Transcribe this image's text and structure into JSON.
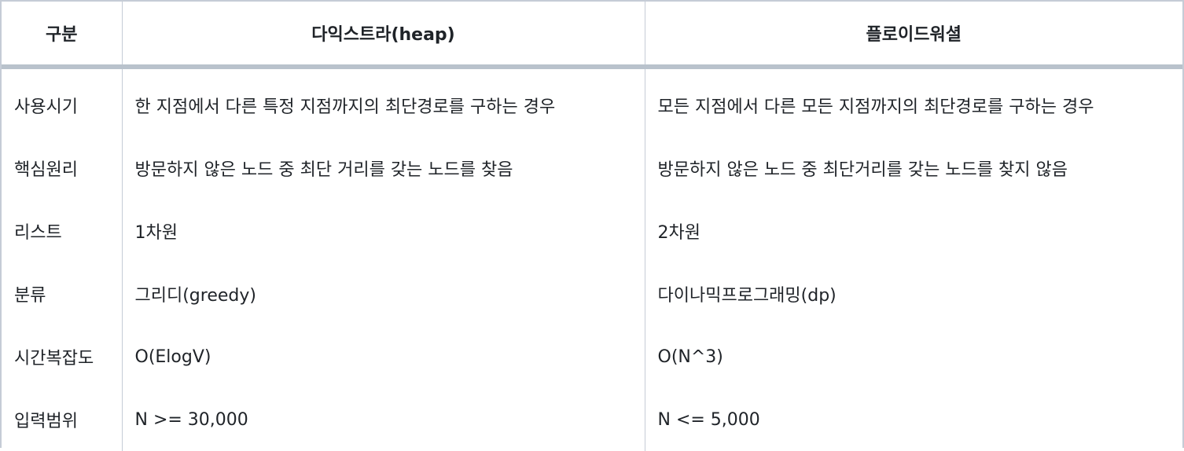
{
  "table": {
    "headers": [
      "구분",
      "다익스트라(heap)",
      "플로이드워셜"
    ],
    "rows": [
      [
        "사용시기",
        "한 지점에서 다른 특정 지점까지의 최단경로를 구하는 경우",
        "모든 지점에서 다른 모든 지점까지의 최단경로를 구하는 경우"
      ],
      [
        "핵심원리",
        "방문하지 않은 노드 중 최단 거리를 갖는 노드를 찾음",
        "방문하지 않은 노드 중 최단거리를 갖는 노드를 찾지 않음"
      ],
      [
        "리스트",
        "1차원",
        "2차원"
      ],
      [
        "분류",
        "그리디(greedy)",
        "다이나믹프로그래밍(dp)"
      ],
      [
        "시간복잡도",
        "O(ElogV)",
        "O(N^3)"
      ],
      [
        "입력범위",
        "N >= 30,000",
        "N <= 5,000"
      ]
    ]
  }
}
